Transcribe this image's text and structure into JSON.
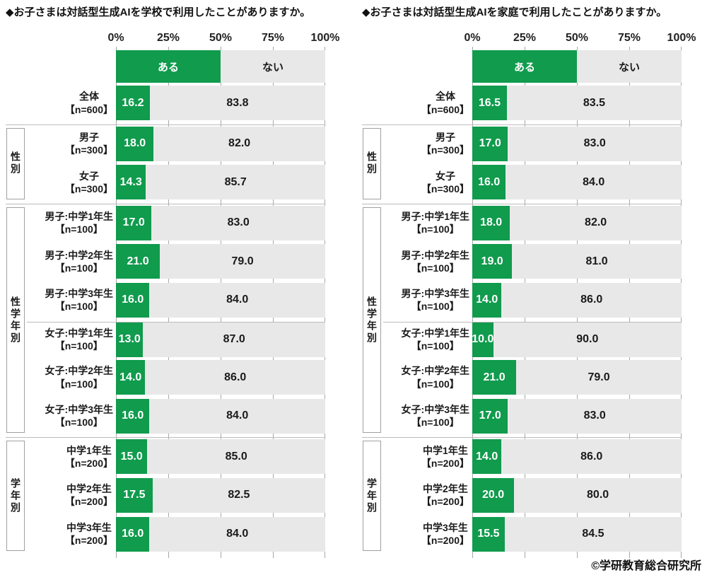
{
  "copyright": "©学研教育総合研究所",
  "colors": {
    "green": "#109b4d",
    "gray_bar": "#e8e8e8",
    "grid": "#a8a8a8",
    "separator": "#bcbcbc",
    "box_border": "#a0a0a0",
    "text": "#1a1a1a"
  },
  "legend": {
    "aru": "ある",
    "nai": "ない"
  },
  "axis_ticks": [
    "0%",
    "25%",
    "50%",
    "75%",
    "100%"
  ],
  "row_groups": [
    {
      "label": "",
      "rows": [
        {
          "name": "全体",
          "n": "【n=600】"
        }
      ]
    },
    {
      "label": "性別",
      "rows": [
        {
          "name": "男子",
          "n": "【n=300】"
        },
        {
          "name": "女子",
          "n": "【n=300】"
        }
      ]
    },
    {
      "label": "性学年別",
      "rows": [
        {
          "name": "男子:中学1年生",
          "n": "【n=100】"
        },
        {
          "name": "男子:中学2年生",
          "n": "【n=100】"
        },
        {
          "name": "男子:中学3年生",
          "n": "【n=100】"
        },
        {
          "name": "女子:中学1年生",
          "n": "【n=100】",
          "divider_before": true
        },
        {
          "name": "女子:中学2年生",
          "n": "【n=100】"
        },
        {
          "name": "女子:中学3年生",
          "n": "【n=100】"
        }
      ]
    },
    {
      "label": "学年別",
      "rows": [
        {
          "name": "中学1年生",
          "n": "【n=200】"
        },
        {
          "name": "中学2年生",
          "n": "【n=200】"
        },
        {
          "name": "中学3年生",
          "n": "【n=200】"
        }
      ]
    }
  ],
  "chart_data": [
    {
      "type": "bar",
      "orientation": "horizontal",
      "stacked": true,
      "title": "◆お子さまは対話型生成AIを学校で利用したことがありますか。",
      "xlim": [
        0,
        100
      ],
      "x_ticks": [
        "0%",
        "25%",
        "50%",
        "75%",
        "100%"
      ],
      "legend_position": "top",
      "grid": true,
      "categories": [
        "全体【n=600】",
        "男子【n=300】",
        "女子【n=300】",
        "男子:中学1年生【n=100】",
        "男子:中学2年生【n=100】",
        "男子:中学3年生【n=100】",
        "女子:中学1年生【n=100】",
        "女子:中学2年生【n=100】",
        "女子:中学3年生【n=100】",
        "中学1年生【n=200】",
        "中学2年生【n=200】",
        "中学3年生【n=200】"
      ],
      "series": [
        {
          "name": "ある",
          "values": [
            16.2,
            18.0,
            14.3,
            17.0,
            21.0,
            16.0,
            13.0,
            14.0,
            16.0,
            15.0,
            17.5,
            16.0
          ]
        },
        {
          "name": "ない",
          "values": [
            83.8,
            82.0,
            85.7,
            83.0,
            79.0,
            84.0,
            87.0,
            86.0,
            84.0,
            85.0,
            82.5,
            84.0
          ]
        }
      ]
    },
    {
      "type": "bar",
      "orientation": "horizontal",
      "stacked": true,
      "title": "◆お子さまは対話型生成AIを家庭で利用したことがありますか。",
      "xlim": [
        0,
        100
      ],
      "x_ticks": [
        "0%",
        "25%",
        "50%",
        "75%",
        "100%"
      ],
      "legend_position": "top",
      "grid": true,
      "categories": [
        "全体【n=600】",
        "男子【n=300】",
        "女子【n=300】",
        "男子:中学1年生【n=100】",
        "男子:中学2年生【n=100】",
        "男子:中学3年生【n=100】",
        "女子:中学1年生【n=100】",
        "女子:中学2年生【n=100】",
        "女子:中学3年生【n=100】",
        "中学1年生【n=200】",
        "中学2年生【n=200】",
        "中学3年生【n=200】"
      ],
      "series": [
        {
          "name": "ある",
          "values": [
            16.5,
            17.0,
            16.0,
            18.0,
            19.0,
            14.0,
            10.0,
            21.0,
            17.0,
            14.0,
            20.0,
            15.5
          ]
        },
        {
          "name": "ない",
          "values": [
            83.5,
            83.0,
            84.0,
            82.0,
            81.0,
            86.0,
            90.0,
            79.0,
            83.0,
            86.0,
            80.0,
            84.5
          ]
        }
      ]
    }
  ]
}
